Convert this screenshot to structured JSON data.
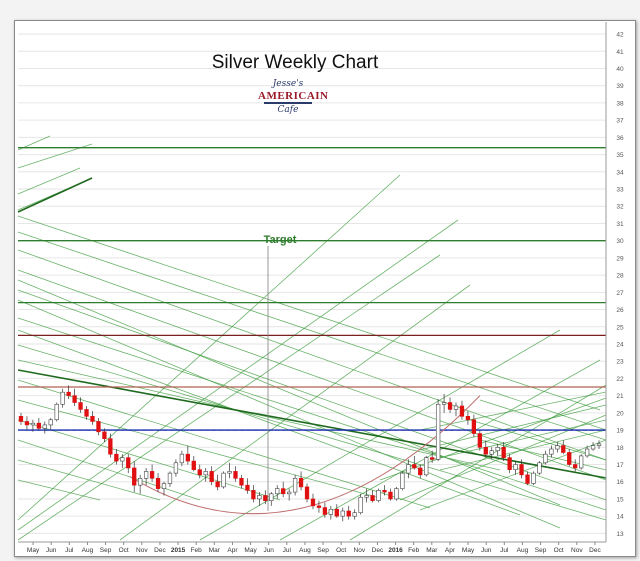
{
  "chart_data": {
    "type": "candlestick",
    "title": "Silver Weekly Chart",
    "logo_text": [
      "Jesse's",
      "AMERICAIN",
      "Cafe"
    ],
    "annotation": "Target",
    "ylim": [
      12.5,
      42.7
    ],
    "y_ticks": [
      13,
      14,
      15,
      16,
      17,
      18,
      19,
      20,
      21,
      22,
      23,
      24,
      25,
      26,
      27,
      28,
      29,
      30,
      31,
      32,
      33,
      34,
      35,
      36,
      37,
      38,
      39,
      40,
      41,
      42
    ],
    "x_labels": [
      "May",
      "Jun",
      "Jul",
      "Aug",
      "Sep",
      "Oct",
      "Nov",
      "Dec",
      "2015",
      "Feb",
      "Mar",
      "Apr",
      "May",
      "Jun",
      "Jul",
      "Aug",
      "Sep",
      "Oct",
      "Nov",
      "Dec",
      "2016",
      "Feb",
      "Mar",
      "Apr",
      "May",
      "Jun",
      "Jul",
      "Aug",
      "Sep",
      "Oct",
      "Nov",
      "Dec"
    ],
    "grid": true,
    "horizontal_levels": [
      {
        "value": 35.4,
        "color": "#2e7d2e"
      },
      {
        "value": 30.0,
        "color": "#2e7d2e"
      },
      {
        "value": 26.4,
        "color": "#2e7d2e"
      },
      {
        "value": 24.5,
        "color": "#7a1f1f"
      },
      {
        "value": 21.5,
        "color": "#b06050"
      },
      {
        "value": 19.0,
        "color": "#1a2fb0"
      }
    ],
    "colors": {
      "up": "#ffffff",
      "down": "#e01010",
      "fan": "#3a9a3a",
      "arc": "#c07070",
      "target": "#2e7d2e"
    },
    "candles": [
      [
        19.8,
        20.0,
        19.3,
        19.5
      ],
      [
        19.5,
        19.8,
        19.0,
        19.3
      ],
      [
        19.3,
        19.6,
        18.9,
        19.4
      ],
      [
        19.4,
        19.7,
        19.0,
        19.1
      ],
      [
        19.1,
        19.5,
        18.8,
        19.3
      ],
      [
        19.3,
        19.7,
        19.0,
        19.6
      ],
      [
        19.6,
        20.6,
        19.5,
        20.5
      ],
      [
        20.5,
        21.4,
        20.3,
        21.2
      ],
      [
        21.2,
        21.6,
        20.8,
        21.0
      ],
      [
        21.0,
        21.4,
        20.4,
        20.6
      ],
      [
        20.6,
        20.9,
        20.0,
        20.2
      ],
      [
        20.2,
        20.4,
        19.6,
        19.8
      ],
      [
        19.8,
        20.1,
        19.3,
        19.5
      ],
      [
        19.5,
        19.7,
        18.7,
        18.9
      ],
      [
        18.9,
        19.1,
        18.3,
        18.5
      ],
      [
        18.5,
        18.8,
        17.4,
        17.6
      ],
      [
        17.6,
        17.9,
        17.0,
        17.2
      ],
      [
        17.2,
        17.6,
        16.8,
        17.4
      ],
      [
        17.4,
        17.6,
        16.5,
        16.8
      ],
      [
        16.8,
        17.2,
        15.4,
        15.8
      ],
      [
        15.8,
        16.4,
        15.3,
        16.2
      ],
      [
        16.2,
        16.8,
        15.8,
        16.6
      ],
      [
        16.6,
        17.0,
        16.0,
        16.2
      ],
      [
        16.2,
        16.5,
        15.4,
        15.6
      ],
      [
        15.6,
        16.0,
        15.2,
        15.9
      ],
      [
        15.9,
        16.6,
        15.7,
        16.5
      ],
      [
        16.5,
        17.3,
        16.3,
        17.1
      ],
      [
        17.1,
        17.8,
        16.9,
        17.6
      ],
      [
        17.6,
        18.1,
        17.0,
        17.2
      ],
      [
        17.2,
        17.5,
        16.6,
        16.7
      ],
      [
        16.7,
        17.0,
        16.2,
        16.4
      ],
      [
        16.4,
        16.8,
        16.0,
        16.6
      ],
      [
        16.6,
        16.9,
        15.8,
        16.0
      ],
      [
        16.0,
        16.4,
        15.5,
        15.7
      ],
      [
        15.7,
        16.6,
        15.6,
        16.5
      ],
      [
        16.5,
        17.1,
        16.2,
        16.6
      ],
      [
        16.6,
        16.9,
        16.0,
        16.2
      ],
      [
        16.2,
        16.4,
        15.6,
        15.8
      ],
      [
        15.8,
        16.2,
        15.3,
        15.5
      ],
      [
        15.5,
        15.8,
        14.8,
        15.0
      ],
      [
        15.0,
        15.4,
        14.6,
        15.2
      ],
      [
        15.2,
        15.5,
        14.7,
        14.9
      ],
      [
        14.9,
        15.4,
        14.6,
        15.3
      ],
      [
        15.3,
        15.8,
        15.0,
        15.6
      ],
      [
        15.6,
        16.0,
        15.1,
        15.3
      ],
      [
        15.3,
        15.6,
        14.9,
        15.4
      ],
      [
        15.4,
        16.4,
        15.2,
        16.2
      ],
      [
        16.2,
        16.6,
        15.5,
        15.7
      ],
      [
        15.7,
        15.9,
        14.8,
        15.0
      ],
      [
        15.0,
        15.3,
        14.4,
        14.6
      ],
      [
        14.6,
        14.9,
        14.2,
        14.5
      ],
      [
        14.5,
        14.8,
        13.9,
        14.1
      ],
      [
        14.1,
        14.6,
        13.8,
        14.4
      ],
      [
        14.4,
        14.7,
        13.9,
        14.0
      ],
      [
        14.0,
        14.5,
        13.7,
        14.3
      ],
      [
        14.3,
        14.6,
        13.8,
        14.0
      ],
      [
        14.0,
        14.4,
        13.8,
        14.2
      ],
      [
        14.2,
        15.3,
        14.1,
        15.1
      ],
      [
        15.1,
        15.6,
        14.8,
        15.2
      ],
      [
        15.2,
        15.5,
        14.8,
        14.9
      ],
      [
        14.9,
        15.6,
        14.8,
        15.5
      ],
      [
        15.5,
        15.8,
        15.2,
        15.4
      ],
      [
        15.4,
        15.6,
        14.9,
        15.0
      ],
      [
        15.0,
        15.7,
        14.9,
        15.6
      ],
      [
        15.6,
        16.6,
        15.5,
        16.5
      ],
      [
        16.5,
        17.3,
        16.2,
        17.0
      ],
      [
        17.0,
        17.5,
        16.7,
        16.8
      ],
      [
        16.8,
        17.0,
        16.2,
        16.4
      ],
      [
        16.4,
        17.5,
        16.3,
        17.4
      ],
      [
        17.4,
        17.8,
        17.1,
        17.3
      ],
      [
        17.3,
        20.8,
        17.2,
        20.5
      ],
      [
        20.5,
        21.1,
        20.0,
        20.6
      ],
      [
        20.6,
        20.9,
        20.0,
        20.2
      ],
      [
        20.2,
        20.6,
        19.8,
        20.4
      ],
      [
        20.4,
        20.7,
        19.6,
        19.8
      ],
      [
        19.8,
        20.1,
        19.3,
        19.6
      ],
      [
        19.6,
        19.9,
        18.6,
        18.8
      ],
      [
        18.8,
        19.0,
        17.8,
        18.0
      ],
      [
        18.0,
        18.4,
        17.4,
        17.6
      ],
      [
        17.6,
        18.0,
        17.3,
        17.8
      ],
      [
        17.8,
        18.2,
        17.5,
        18.0
      ],
      [
        18.0,
        18.3,
        17.2,
        17.4
      ],
      [
        17.4,
        17.6,
        16.5,
        16.7
      ],
      [
        16.7,
        17.2,
        16.4,
        17.0
      ],
      [
        17.0,
        17.3,
        16.2,
        16.4
      ],
      [
        16.4,
        16.6,
        15.8,
        15.9
      ],
      [
        15.9,
        16.6,
        15.8,
        16.5
      ],
      [
        16.5,
        17.2,
        16.4,
        17.1
      ],
      [
        17.1,
        17.8,
        17.0,
        17.6
      ],
      [
        17.6,
        18.1,
        17.4,
        17.9
      ],
      [
        17.9,
        18.3,
        17.7,
        18.1
      ],
      [
        18.1,
        18.4,
        17.6,
        17.7
      ],
      [
        17.7,
        17.9,
        16.9,
        17.0
      ],
      [
        17.0,
        17.3,
        16.6,
        16.8
      ],
      [
        16.8,
        17.6,
        16.7,
        17.5
      ],
      [
        17.5,
        18.1,
        17.4,
        17.9
      ],
      [
        17.9,
        18.3,
        17.8,
        18.1
      ],
      [
        18.1,
        18.4,
        17.9,
        18.2
      ]
    ]
  }
}
